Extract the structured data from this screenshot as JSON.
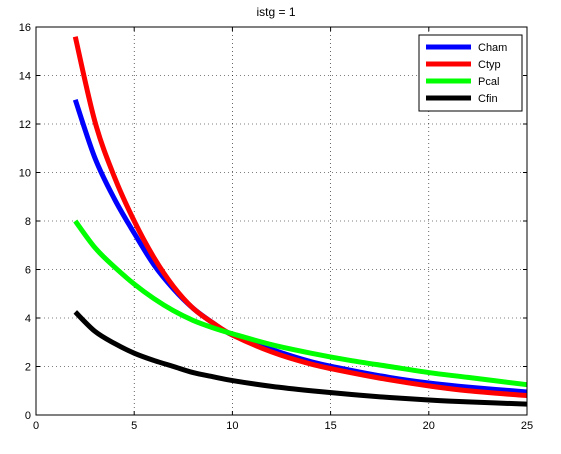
{
  "chart_data": {
    "type": "line",
    "title": "istg = 1",
    "xlabel": "",
    "ylabel": "",
    "xlim": [
      0,
      25
    ],
    "ylim": [
      0,
      16
    ],
    "xticks": [
      0,
      5,
      10,
      15,
      20,
      25
    ],
    "yticks": [
      0,
      2,
      4,
      6,
      8,
      10,
      12,
      14,
      16
    ],
    "grid": true,
    "legend_position": "top-right",
    "series": [
      {
        "name": "Cham",
        "color": "#0000ff",
        "x": [
          2,
          3,
          4,
          5,
          6,
          7,
          8,
          9,
          10,
          12,
          14,
          16,
          18,
          20,
          22,
          25
        ],
        "y": [
          13.0,
          10.6,
          8.9,
          7.5,
          6.2,
          5.2,
          4.4,
          3.8,
          3.3,
          2.7,
          2.2,
          1.85,
          1.55,
          1.32,
          1.15,
          0.95
        ]
      },
      {
        "name": "Ctyp",
        "color": "#ff0000",
        "x": [
          2,
          3,
          4,
          5,
          6,
          7,
          8,
          9,
          10,
          12,
          14,
          16,
          18,
          20,
          22,
          25
        ],
        "y": [
          15.6,
          12.1,
          9.8,
          8.0,
          6.5,
          5.3,
          4.4,
          3.8,
          3.3,
          2.6,
          2.1,
          1.75,
          1.45,
          1.2,
          1.0,
          0.8
        ]
      },
      {
        "name": "Pcal",
        "color": "#00ff00",
        "x": [
          2,
          3,
          4,
          5,
          6,
          7,
          8,
          9,
          10,
          12,
          14,
          16,
          18,
          20,
          22,
          25
        ],
        "y": [
          8.0,
          6.9,
          6.1,
          5.4,
          4.8,
          4.3,
          3.9,
          3.6,
          3.35,
          2.9,
          2.55,
          2.25,
          2.0,
          1.75,
          1.55,
          1.25
        ]
      },
      {
        "name": "Cfin",
        "color": "#000000",
        "x": [
          2,
          3,
          4,
          5,
          6,
          7,
          8,
          9,
          10,
          12,
          14,
          16,
          18,
          20,
          22,
          25
        ],
        "y": [
          4.25,
          3.45,
          2.95,
          2.55,
          2.25,
          2.0,
          1.75,
          1.58,
          1.42,
          1.18,
          1.0,
          0.85,
          0.72,
          0.62,
          0.54,
          0.45
        ]
      }
    ]
  }
}
